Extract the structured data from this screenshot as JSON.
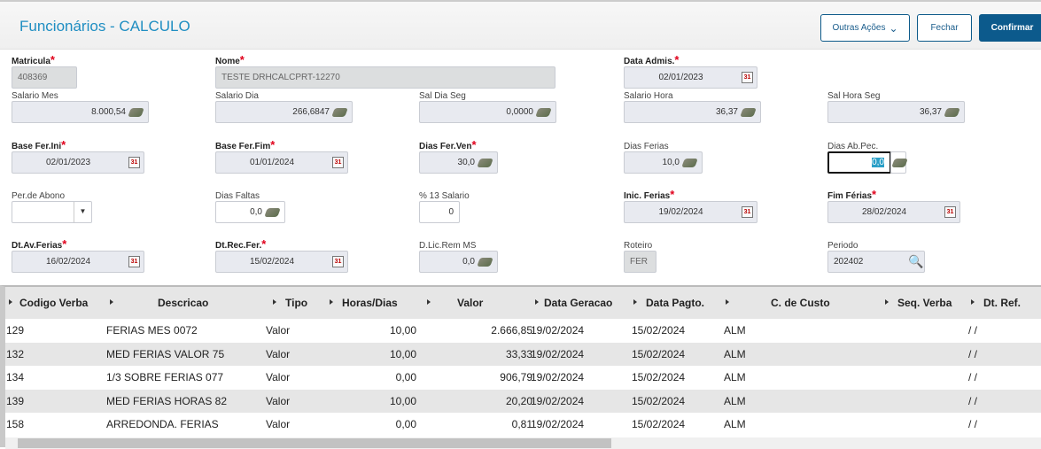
{
  "header": {
    "title": "Funcionários - CALCULO",
    "buttons": {
      "other": "Outras Ações",
      "close": "Fechar",
      "confirm": "Confirmar"
    }
  },
  "fields": {
    "matricula": {
      "label": "Matricula",
      "value": "408369"
    },
    "nome": {
      "label": "Nome",
      "value": "TESTE DRHCALCPRT-12270"
    },
    "data_admis": {
      "label": "Data Admis.",
      "value": "02/01/2023"
    },
    "salario_mes": {
      "label": "Salario Mes",
      "value": "8.000,54"
    },
    "salario_dia": {
      "label": "Salario Dia",
      "value": "266,6847"
    },
    "sal_dia_seg": {
      "label": "Sal Dia Seg",
      "value": "0,0000"
    },
    "salario_hora": {
      "label": "Salario Hora",
      "value": "36,37"
    },
    "sal_hora_seg": {
      "label": "Sal Hora Seg",
      "value": "36,37"
    },
    "base_fer_ini": {
      "label": "Base Fer.Ini",
      "value": "02/01/2023"
    },
    "base_fer_fim": {
      "label": "Base Fer.Fim",
      "value": "01/01/2024"
    },
    "dias_fer_ven": {
      "label": "Dias Fer.Ven",
      "value": "30,0"
    },
    "dias_ferias": {
      "label": "Dias Ferias",
      "value": "10,0"
    },
    "dias_ab_pec": {
      "label": "Dias Ab.Pec.",
      "value": "0,0"
    },
    "per_abono": {
      "label": "Per.de Abono",
      "value": ""
    },
    "dias_faltas": {
      "label": "Dias Faltas",
      "value": "0,0"
    },
    "pct_13": {
      "label": "% 13 Salario",
      "value": "0"
    },
    "inic_ferias": {
      "label": "Inic. Ferias",
      "value": "19/02/2024"
    },
    "fim_ferias": {
      "label": "Fim   Férias",
      "value": "28/02/2024"
    },
    "dt_av_ferias": {
      "label": "Dt.Av.Ferias",
      "value": "16/02/2024"
    },
    "dt_rec_fer": {
      "label": "Dt.Rec.Fer.",
      "value": "15/02/2024"
    },
    "d_lic_rem": {
      "label": "D.Lic.Rem MS",
      "value": "0,0"
    },
    "roteiro": {
      "label": "Roteiro",
      "value": "FER"
    },
    "periodo": {
      "label": "Periodo",
      "value": "202402"
    }
  },
  "table": {
    "columns": [
      "Codigo Verba",
      "Descricao",
      "Tipo",
      "Horas/Dias",
      "Valor",
      "Data Geracao",
      "Data Pagto.",
      "C. de Custo",
      "Seq. Verba",
      "Dt. Ref."
    ],
    "rows": [
      [
        "129",
        "FERIAS MES 0072",
        "Valor",
        "10,00",
        "2.666,85",
        "19/02/2024",
        "15/02/2024",
        "ALM",
        "",
        "/ /"
      ],
      [
        "132",
        "MED FERIAS VALOR 75",
        "Valor",
        "10,00",
        "33,33",
        "19/02/2024",
        "15/02/2024",
        "ALM",
        "",
        "/ /"
      ],
      [
        "134",
        "1/3 SOBRE FERIAS 077",
        "Valor",
        "0,00",
        "906,79",
        "19/02/2024",
        "15/02/2024",
        "ALM",
        "",
        "/ /"
      ],
      [
        "139",
        "MED FERIAS HORAS 82",
        "Valor",
        "10,00",
        "20,20",
        "19/02/2024",
        "15/02/2024",
        "ALM",
        "",
        "/ /"
      ],
      [
        "158",
        "ARREDONDA. FERIAS",
        "Valor",
        "0,00",
        "0,81",
        "19/02/2024",
        "15/02/2024",
        "ALM",
        "",
        "/ /"
      ]
    ]
  },
  "colors": {
    "accent": "#0c5a8c",
    "title": "#1f8ec2",
    "required": "#e0001b"
  }
}
